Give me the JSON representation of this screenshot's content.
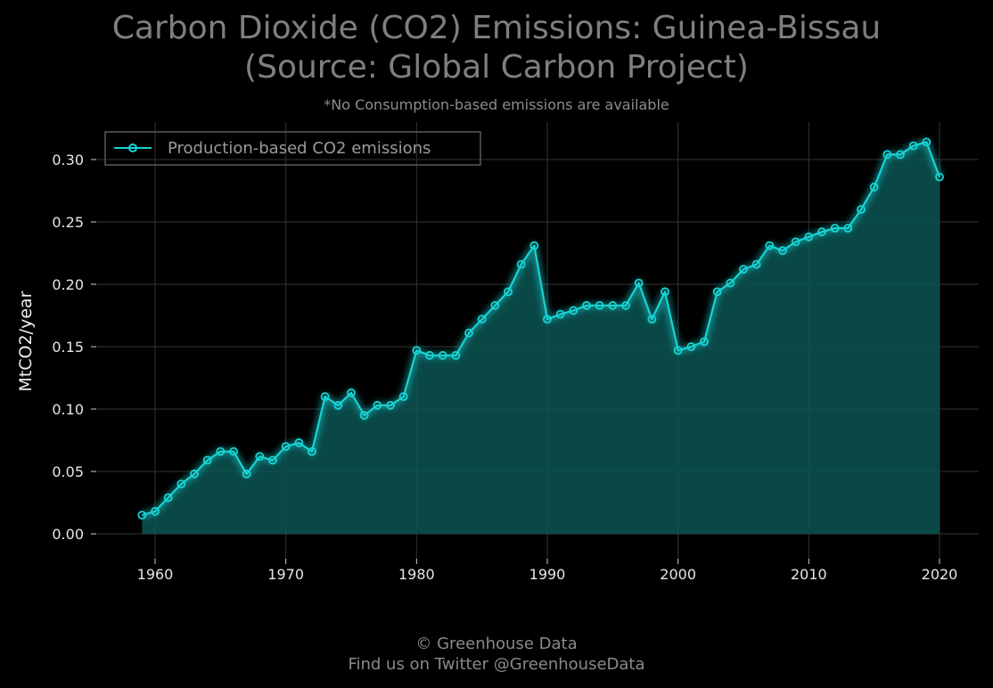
{
  "title_line1": "Carbon Dioxide (CO2) Emissions: Guinea-Bissau",
  "title_line2": "(Source: Global Carbon Project)",
  "subtitle": "*No Consumption-based emissions are available",
  "credit_line1": "© Greenhouse Data",
  "credit_line2": "Find us on Twitter @GreenhouseData",
  "colors": {
    "line": "#17d4d4",
    "fill": "#0a5553",
    "grid": "#333333",
    "background": "#000000"
  },
  "chart_data": {
    "type": "area",
    "title": "Carbon Dioxide (CO2) Emissions: Guinea-Bissau (Source: Global Carbon Project)",
    "xlabel": "",
    "ylabel": "MtCO2/year",
    "xlim": [
      1955.5,
      2023
    ],
    "ylim": [
      -0.02,
      0.33
    ],
    "xticks": [
      "1960",
      "1970",
      "1980",
      "1990",
      "2000",
      "2010",
      "2020"
    ],
    "yticks": [
      "0.00",
      "0.05",
      "0.10",
      "0.15",
      "0.20",
      "0.25",
      "0.30"
    ],
    "grid": true,
    "legend_position": "top-left",
    "x": [
      1959,
      1960,
      1961,
      1962,
      1963,
      1964,
      1965,
      1966,
      1967,
      1968,
      1969,
      1970,
      1971,
      1972,
      1973,
      1974,
      1975,
      1976,
      1977,
      1978,
      1979,
      1980,
      1981,
      1982,
      1983,
      1984,
      1985,
      1986,
      1987,
      1988,
      1989,
      1990,
      1991,
      1992,
      1993,
      1994,
      1995,
      1996,
      1997,
      1998,
      1999,
      2000,
      2001,
      2002,
      2003,
      2004,
      2005,
      2006,
      2007,
      2008,
      2009,
      2010,
      2011,
      2012,
      2013,
      2014,
      2015,
      2016,
      2017,
      2018,
      2019,
      2020
    ],
    "series": [
      {
        "name": "Production-based CO2 emissions",
        "values": [
          0.015,
          0.018,
          0.029,
          0.04,
          0.048,
          0.059,
          0.066,
          0.066,
          0.048,
          0.062,
          0.059,
          0.07,
          0.073,
          0.066,
          0.11,
          0.103,
          0.113,
          0.095,
          0.103,
          0.103,
          0.11,
          0.147,
          0.143,
          0.143,
          0.143,
          0.161,
          0.172,
          0.183,
          0.194,
          0.216,
          0.231,
          0.172,
          0.176,
          0.179,
          0.183,
          0.183,
          0.183,
          0.183,
          0.201,
          0.172,
          0.194,
          0.147,
          0.15,
          0.154,
          0.194,
          0.201,
          0.212,
          0.216,
          0.231,
          0.227,
          0.234,
          0.238,
          0.242,
          0.245,
          0.245,
          0.26,
          0.278,
          0.304,
          0.304,
          0.311,
          0.314,
          0.286
        ]
      }
    ]
  }
}
